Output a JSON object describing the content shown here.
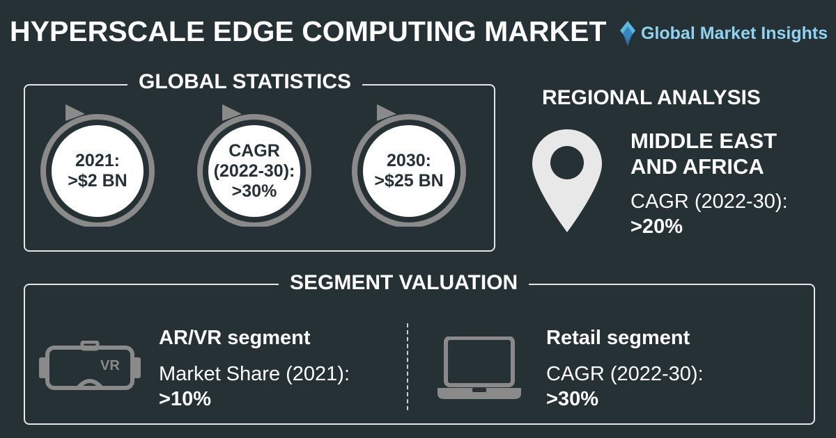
{
  "header": {
    "title": "HYPERSCALE EDGE COMPUTING MARKET",
    "logo_text": "Global Market Insights",
    "logo_icon": "diamond-logo-icon"
  },
  "global_statistics": {
    "title": "GLOBAL STATISTICS",
    "items": [
      {
        "line1": "2021:",
        "line2": ">$2 BN",
        "line3": ""
      },
      {
        "line1": "CAGR",
        "line2": "(2022-30):",
        "line3": ">30%"
      },
      {
        "line1": "2030:",
        "line2": ">$25 BN",
        "line3": ""
      }
    ]
  },
  "regional": {
    "title": "REGIONAL ANALYSIS",
    "icon": "location-pin-icon",
    "region_line1": "MIDDLE EAST",
    "region_line2": "AND AFRICA",
    "metric": "CAGR (2022-30):",
    "value": ">20%"
  },
  "segments": {
    "title": "SEGMENT VALUATION",
    "items": [
      {
        "icon": "vr-headset-icon",
        "icon_label": "VR",
        "name": "AR/VR segment",
        "metric": "Market Share (2021):",
        "value": ">10%"
      },
      {
        "icon": "laptop-icon",
        "name": "Retail segment",
        "metric": "CAGR (2022-30):",
        "value": ">30%"
      }
    ]
  },
  "colors": {
    "background": "#263135",
    "text": "#ffffff",
    "circle_fill": "#ffffff",
    "circle_ring": "#8a8a8a",
    "icon_gray": "#e0e0e0",
    "logo_blue": "#8fd3f0"
  }
}
